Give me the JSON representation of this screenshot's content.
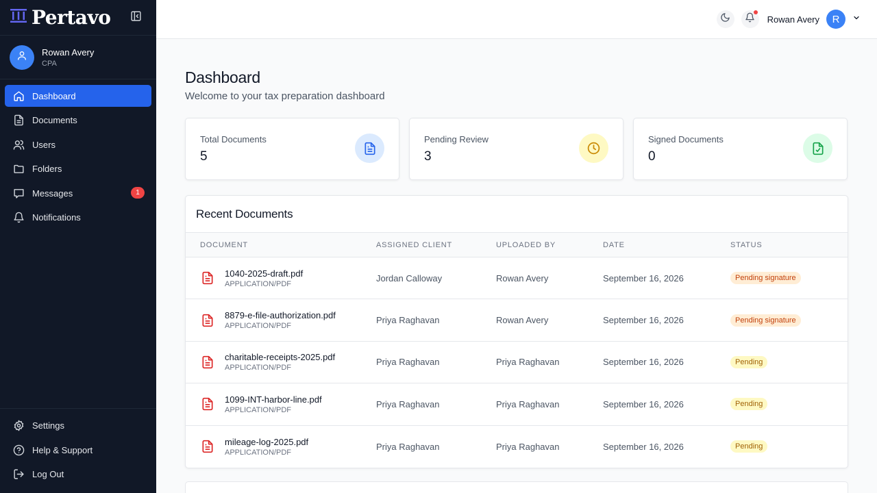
{
  "brand": {
    "name": "Pertavo",
    "logo_icon": "columns-logo-icon",
    "collapse_icon": "sidebar-collapse-icon"
  },
  "profile": {
    "name": "Rowan Avery",
    "role": "CPA",
    "icon": "user-icon"
  },
  "nav": [
    {
      "label": "Dashboard",
      "icon": "home-icon",
      "active": true
    },
    {
      "label": "Documents",
      "icon": "file-icon"
    },
    {
      "label": "Users",
      "icon": "users-icon"
    },
    {
      "label": "Folders",
      "icon": "folder-icon"
    },
    {
      "label": "Messages",
      "icon": "message-icon",
      "badge": "1"
    },
    {
      "label": "Notifications",
      "icon": "bell-icon"
    }
  ],
  "nav_bottom": [
    {
      "label": "Settings",
      "icon": "gear-icon"
    },
    {
      "label": "Help & Support",
      "icon": "help-circle-icon"
    },
    {
      "label": "Log Out",
      "icon": "logout-icon"
    }
  ],
  "topbar": {
    "user_name": "Rowan Avery",
    "user_initial": "R",
    "theme_icon": "moon-icon",
    "notif_icon": "bell-icon",
    "dropdown_icon": "chevron-down-icon"
  },
  "page": {
    "title": "Dashboard",
    "subtitle": "Welcome to your tax preparation dashboard"
  },
  "stats": [
    {
      "label": "Total Documents",
      "value": "5",
      "icon": "document-icon",
      "color": "#2563eb",
      "bg": "#dbeafe"
    },
    {
      "label": "Pending Review",
      "value": "3",
      "icon": "clock-icon",
      "color": "#ca8a04",
      "bg": "#fef9c3"
    },
    {
      "label": "Signed Documents",
      "value": "0",
      "icon": "file-check-icon",
      "color": "#16a34a",
      "bg": "#dcfce7"
    }
  ],
  "recent": {
    "title": "Recent Documents",
    "columns": [
      "DOCUMENT",
      "ASSIGNED CLIENT",
      "UPLOADED BY",
      "DATE",
      "STATUS"
    ],
    "rows": [
      {
        "name": "1040-2025-draft.pdf",
        "type": "APPLICATION/PDF",
        "client": "Jordan Calloway",
        "uploaded_by": "Rowan Avery",
        "date": "September 16, 2026",
        "status": "Pending signature",
        "status_color": "orange"
      },
      {
        "name": "8879-e-file-authorization.pdf",
        "type": "APPLICATION/PDF",
        "client": "Priya Raghavan",
        "uploaded_by": "Rowan Avery",
        "date": "September 16, 2026",
        "status": "Pending signature",
        "status_color": "orange"
      },
      {
        "name": "charitable-receipts-2025.pdf",
        "type": "APPLICATION/PDF",
        "client": "Priya Raghavan",
        "uploaded_by": "Priya Raghavan",
        "date": "September 16, 2026",
        "status": "Pending",
        "status_color": "yellow"
      },
      {
        "name": "1099-INT-harbor-line.pdf",
        "type": "APPLICATION/PDF",
        "client": "Priya Raghavan",
        "uploaded_by": "Priya Raghavan",
        "date": "September 16, 2026",
        "status": "Pending",
        "status_color": "yellow"
      },
      {
        "name": "mileage-log-2025.pdf",
        "type": "APPLICATION/PDF",
        "client": "Priya Raghavan",
        "uploaded_by": "Priya Raghavan",
        "date": "September 16, 2026",
        "status": "Pending",
        "status_color": "yellow"
      }
    ]
  },
  "colors": {
    "sidebar_bg": "#111827",
    "accent": "#2563eb",
    "danger": "#ef4444",
    "pdf_icon": "#dc2626"
  }
}
